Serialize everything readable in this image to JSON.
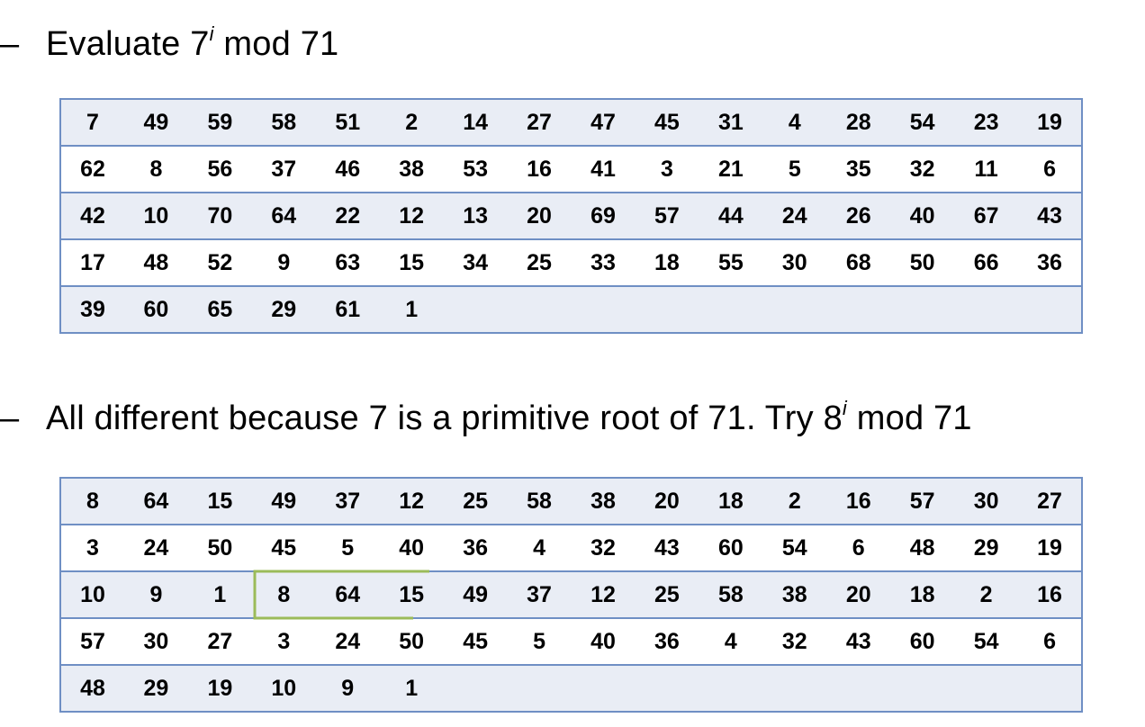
{
  "bullet1": {
    "dash": "–",
    "pre": "Evaluate 7",
    "sup": "i",
    "post": " mod 71"
  },
  "table1": {
    "rows": [
      [
        "7",
        "49",
        "59",
        "58",
        "51",
        "2",
        "14",
        "27",
        "47",
        "45",
        "31",
        "4",
        "28",
        "54",
        "23",
        "19"
      ],
      [
        "62",
        "8",
        "56",
        "37",
        "46",
        "38",
        "53",
        "16",
        "41",
        "3",
        "21",
        "5",
        "35",
        "32",
        "11",
        "6"
      ],
      [
        "42",
        "10",
        "70",
        "64",
        "22",
        "12",
        "13",
        "20",
        "69",
        "57",
        "44",
        "24",
        "26",
        "40",
        "67",
        "43"
      ],
      [
        "17",
        "48",
        "52",
        "9",
        "63",
        "15",
        "34",
        "25",
        "33",
        "18",
        "55",
        "30",
        "68",
        "50",
        "66",
        "36"
      ],
      [
        "39",
        "60",
        "65",
        "29",
        "61",
        "1",
        "",
        "",
        "",
        "",
        "",
        "",
        "",
        "",
        "",
        ""
      ]
    ]
  },
  "bullet2": {
    "dash": "–",
    "pre": "All different because 7 is a primitive root of 71. Try 8",
    "sup": "i",
    "post": " mod 71"
  },
  "table2": {
    "rows": [
      [
        "8",
        "64",
        "15",
        "49",
        "37",
        "12",
        "25",
        "58",
        "38",
        "20",
        "18",
        "2",
        "16",
        "57",
        "30",
        "27"
      ],
      [
        "3",
        "24",
        "50",
        "45",
        "5",
        "40",
        "36",
        "4",
        "32",
        "43",
        "60",
        "54",
        "6",
        "48",
        "29",
        "19"
      ],
      [
        "10",
        "9",
        "1",
        "8",
        "64",
        "15",
        "49",
        "37",
        "12",
        "25",
        "58",
        "38",
        "20",
        "18",
        "2",
        "16"
      ],
      [
        "57",
        "30",
        "27",
        "3",
        "24",
        "50",
        "45",
        "5",
        "40",
        "36",
        "4",
        "32",
        "43",
        "60",
        "54",
        "6"
      ],
      [
        "48",
        "29",
        "19",
        "10",
        "9",
        "1",
        "",
        "",
        "",
        "",
        "",
        "",
        "",
        "",
        "",
        ""
      ]
    ]
  },
  "highlight_color": "#9bbb59",
  "table_border_color": "#6f8fc4",
  "table_band_color": "#e9edf5"
}
